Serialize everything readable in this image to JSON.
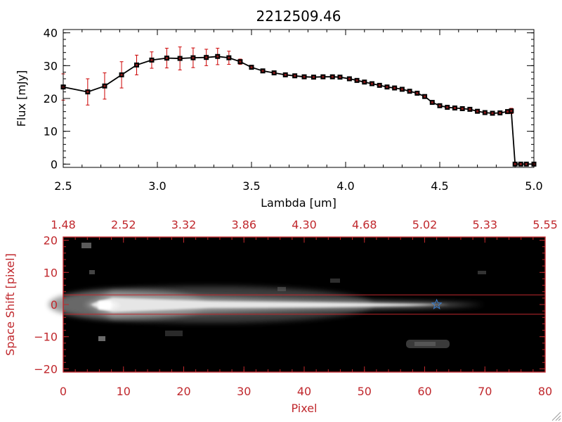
{
  "chart_data": [
    {
      "type": "line",
      "title": "2212509.46",
      "xlabel": "Lambda [um]",
      "ylabel": "Flux [mJy]",
      "xlim": [
        2.5,
        5.0
      ],
      "ylim": [
        -1,
        41
      ],
      "xticks": [
        "2.5",
        "3.0",
        "3.5",
        "4.0",
        "4.5",
        "5.0"
      ],
      "yticks": [
        "0",
        "10",
        "20",
        "30",
        "40"
      ],
      "grid": false,
      "colors": {
        "line": "#000000",
        "marker": "#000000",
        "errorbar": "#cc0000"
      },
      "x": [
        2.5,
        2.63,
        2.72,
        2.81,
        2.89,
        2.97,
        3.05,
        3.12,
        3.19,
        3.26,
        3.32,
        3.38,
        3.44,
        3.5,
        3.56,
        3.62,
        3.68,
        3.73,
        3.78,
        3.83,
        3.88,
        3.93,
        3.97,
        4.02,
        4.06,
        4.1,
        4.14,
        4.18,
        4.22,
        4.26,
        4.3,
        4.34,
        4.38,
        4.42,
        4.46,
        4.5,
        4.54,
        4.58,
        4.62,
        4.66,
        4.7,
        4.74,
        4.78,
        4.82,
        4.86,
        4.88,
        4.9,
        4.93,
        4.96,
        5.0
      ],
      "y": [
        23.5,
        22.0,
        23.8,
        27.2,
        30.2,
        31.7,
        32.3,
        32.2,
        32.4,
        32.5,
        32.8,
        32.4,
        31.2,
        29.5,
        28.4,
        27.8,
        27.2,
        26.9,
        26.6,
        26.5,
        26.6,
        26.6,
        26.5,
        26.0,
        25.5,
        25.0,
        24.5,
        24.0,
        23.5,
        23.2,
        22.8,
        22.2,
        21.6,
        20.6,
        18.8,
        17.8,
        17.3,
        17.1,
        16.9,
        16.7,
        16.1,
        15.7,
        15.5,
        15.6,
        16.0,
        16.2,
        0.0,
        0.0,
        0.0,
        0.0
      ],
      "yerr": [
        4.0,
        4.0,
        4.0,
        4.0,
        3.0,
        2.5,
        3.0,
        3.5,
        3.0,
        2.5,
        2.5,
        2.0,
        0.8,
        0.6,
        0.5,
        0.5,
        0.5,
        0.5,
        0.5,
        0.5,
        0.5,
        0.5,
        0.5,
        0.5,
        0.5,
        0.5,
        0.5,
        0.5,
        0.5,
        0.5,
        0.5,
        0.5,
        0.5,
        0.5,
        0.5,
        0.5,
        0.5,
        0.5,
        0.5,
        0.5,
        0.5,
        0.5,
        0.5,
        0.5,
        0.6,
        0.8,
        0,
        0,
        0,
        0
      ]
    },
    {
      "type": "heatmap",
      "xlabel": "Pixel",
      "ylabel": "Space Shift [pixel]",
      "xlim": [
        0,
        80
      ],
      "ylim": [
        -21,
        21
      ],
      "xticks": [
        "0",
        "10",
        "20",
        "30",
        "40",
        "50",
        "60",
        "70",
        "80"
      ],
      "yticks": [
        "−20",
        "−10",
        "0",
        "10",
        "20"
      ],
      "top_axis_ticks": [
        "1.48",
        "2.52",
        "3.32",
        "3.86",
        "4.30",
        "4.68",
        "5.02",
        "5.33",
        "5.55"
      ],
      "colors": {
        "axes": "#c0282d",
        "aperture": "#c0282d",
        "marker": "#3b7fd1",
        "background": "#000000"
      },
      "aperture_lines_y": [
        3,
        -3
      ],
      "star_marker": {
        "x": 62,
        "y": 0
      },
      "trace": {
        "center_y": 0,
        "brightest_x": 8,
        "fade_end_x": 74
      }
    }
  ]
}
